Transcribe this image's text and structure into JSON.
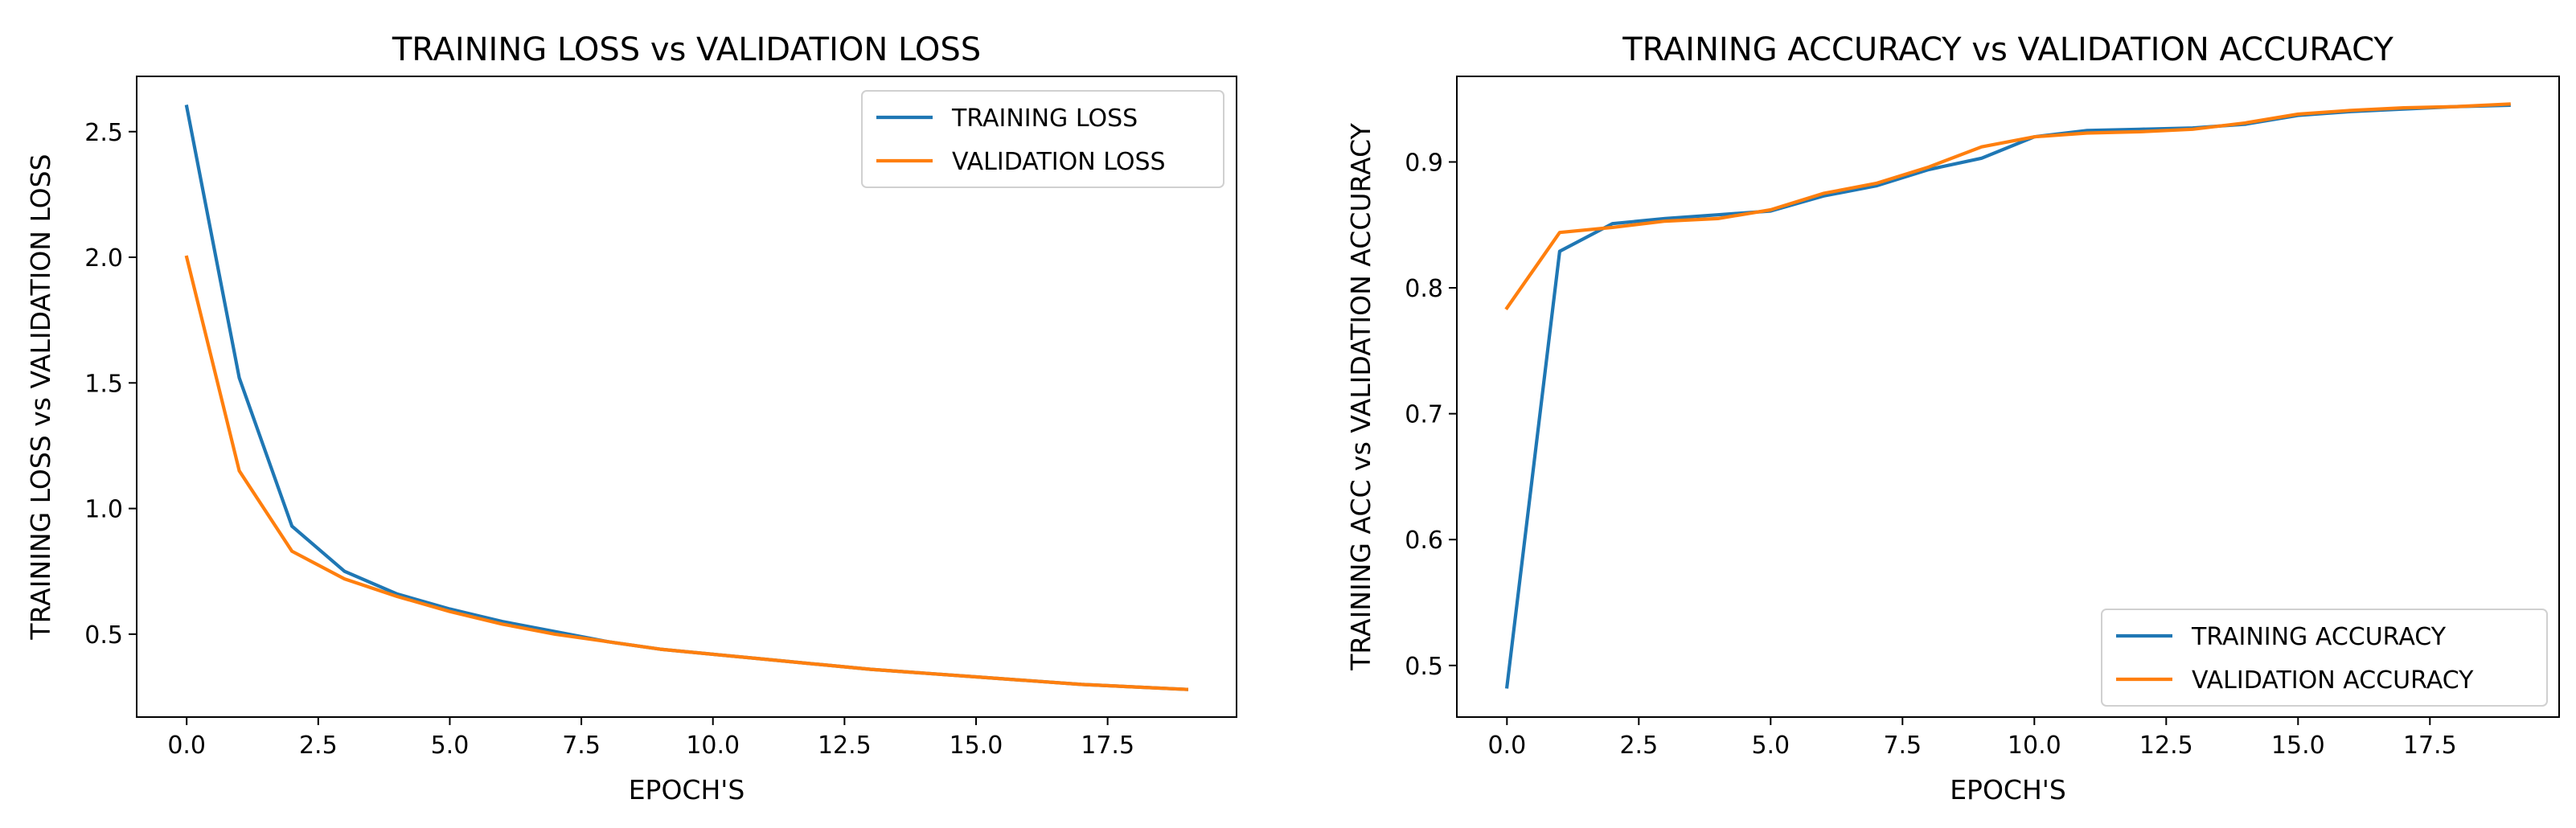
{
  "chart_data": [
    {
      "type": "line",
      "title": "TRAINING LOSS vs VALIDATION LOSS",
      "xlabel": "EPOCH'S",
      "ylabel": "TRAINING LOSS vs VALIDATION LOSS",
      "xlim": [
        -0.95,
        19.95
      ],
      "ylim": [
        0.17,
        2.72
      ],
      "xticks": [
        0.0,
        2.5,
        5.0,
        7.5,
        10.0,
        12.5,
        15.0,
        17.5
      ],
      "xtick_labels": [
        "0.0",
        "2.5",
        "5.0",
        "7.5",
        "10.0",
        "12.5",
        "15.0",
        "17.5"
      ],
      "yticks": [
        0.5,
        1.0,
        1.5,
        2.0,
        2.5
      ],
      "ytick_labels": [
        "0.5",
        "1.0",
        "1.5",
        "2.0",
        "2.5"
      ],
      "legend_position": "top-right",
      "x": [
        0,
        1,
        2,
        3,
        4,
        5,
        6,
        7,
        8,
        9,
        10,
        11,
        12,
        13,
        14,
        15,
        16,
        17,
        18,
        19
      ],
      "series": [
        {
          "name": "TRAINING LOSS",
          "color": "#1f77b4",
          "values": [
            2.6,
            1.52,
            0.93,
            0.75,
            0.66,
            0.6,
            0.55,
            0.51,
            0.47,
            0.44,
            0.42,
            0.4,
            0.38,
            0.36,
            0.345,
            0.33,
            0.315,
            0.3,
            0.29,
            0.28
          ]
        },
        {
          "name": "VALIDATION LOSS",
          "color": "#ff7f0e",
          "values": [
            2.0,
            1.15,
            0.83,
            0.72,
            0.65,
            0.59,
            0.54,
            0.5,
            0.47,
            0.44,
            0.42,
            0.4,
            0.38,
            0.36,
            0.345,
            0.33,
            0.315,
            0.3,
            0.29,
            0.28
          ]
        }
      ]
    },
    {
      "type": "line",
      "title": "TRAINING ACCURACY vs VALIDATION ACCURACY",
      "xlabel": "EPOCH'S",
      "ylabel": "TRAINING ACC vs VALIDATION ACCURACY",
      "xlim": [
        -0.95,
        19.95
      ],
      "ylim": [
        0.459,
        0.968
      ],
      "xticks": [
        0.0,
        2.5,
        5.0,
        7.5,
        10.0,
        12.5,
        15.0,
        17.5
      ],
      "xtick_labels": [
        "0.0",
        "2.5",
        "5.0",
        "7.5",
        "10.0",
        "12.5",
        "15.0",
        "17.5"
      ],
      "yticks": [
        0.5,
        0.6,
        0.7,
        0.8,
        0.9
      ],
      "ytick_labels": [
        "0.5",
        "0.6",
        "0.7",
        "0.8",
        "0.9"
      ],
      "legend_position": "bottom-right",
      "x": [
        0,
        1,
        2,
        3,
        4,
        5,
        6,
        7,
        8,
        9,
        10,
        11,
        12,
        13,
        14,
        15,
        16,
        17,
        18,
        19
      ],
      "series": [
        {
          "name": "TRAINING ACCURACY",
          "color": "#1f77b4",
          "values": [
            0.483,
            0.829,
            0.851,
            0.855,
            0.858,
            0.861,
            0.873,
            0.881,
            0.894,
            0.903,
            0.92,
            0.925,
            0.926,
            0.927,
            0.93,
            0.937,
            0.94,
            0.942,
            0.944,
            0.945
          ]
        },
        {
          "name": "VALIDATION ACCURACY",
          "color": "#ff7f0e",
          "values": [
            0.784,
            0.844,
            0.848,
            0.853,
            0.855,
            0.862,
            0.875,
            0.883,
            0.896,
            0.912,
            0.92,
            0.923,
            0.924,
            0.926,
            0.931,
            0.938,
            0.941,
            0.943,
            0.944,
            0.946
          ]
        }
      ]
    }
  ]
}
